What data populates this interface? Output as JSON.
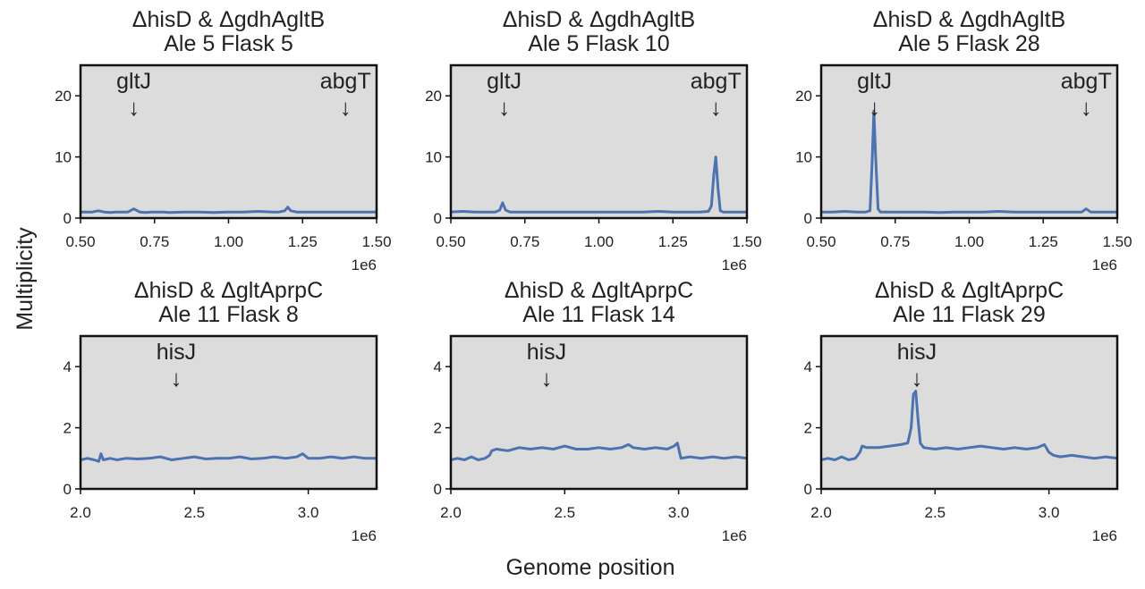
{
  "figure": {
    "xlabel": "Genome position",
    "ylabel": "Multiplicity"
  },
  "chart_data": [
    {
      "type": "line",
      "title": [
        "ΔhisD & ΔgdhAgltB",
        "Ale 5 Flask 5"
      ],
      "xlim": [
        500000,
        1500000
      ],
      "ylim": [
        0,
        25
      ],
      "xticks": [
        500000,
        750000,
        1000000,
        1250000,
        1500000
      ],
      "xtick_labels": [
        "0.50",
        "0.75",
        "1.00",
        "1.25",
        "1.50"
      ],
      "yticks": [
        0,
        10,
        20
      ],
      "ytick_labels": [
        "0",
        "10",
        "20"
      ],
      "x_offset_label": "1e6",
      "series": [
        {
          "color": "#4C72B0",
          "x": [
            500000,
            520000,
            540000,
            560000,
            580000,
            600000,
            620000,
            640000,
            660000,
            680000,
            700000,
            720000,
            740000,
            760000,
            780000,
            800000,
            850000,
            900000,
            950000,
            1000000,
            1050000,
            1100000,
            1150000,
            1170000,
            1190000,
            1200000,
            1210000,
            1230000,
            1250000,
            1300000,
            1350000,
            1400000,
            1450000,
            1500000
          ],
          "y": [
            1.0,
            1.0,
            1.0,
            1.2,
            1.0,
            0.9,
            1.0,
            1.0,
            1.0,
            1.5,
            1.0,
            0.9,
            1.0,
            1.0,
            1.0,
            0.9,
            1.0,
            1.0,
            0.9,
            1.0,
            1.0,
            1.1,
            1.0,
            1.0,
            1.2,
            1.8,
            1.2,
            1.0,
            1.0,
            1.0,
            1.0,
            1.0,
            1.0,
            1.0
          ]
        }
      ],
      "annotations": [
        {
          "text": "gltJ",
          "x": 680000
        },
        {
          "text": "abgT",
          "x": 1395000
        }
      ]
    },
    {
      "type": "line",
      "title": [
        "ΔhisD & ΔgdhAgltB",
        "Ale 5 Flask 10"
      ],
      "xlim": [
        500000,
        1500000
      ],
      "ylim": [
        0,
        25
      ],
      "xticks": [
        500000,
        750000,
        1000000,
        1250000,
        1500000
      ],
      "xtick_labels": [
        "0.50",
        "0.75",
        "1.00",
        "1.25",
        "1.50"
      ],
      "yticks": [
        0,
        10,
        20
      ],
      "ytick_labels": [
        "0",
        "10",
        "20"
      ],
      "x_offset_label": "1e6",
      "series": [
        {
          "color": "#4C72B0",
          "x": [
            500000,
            540000,
            580000,
            620000,
            650000,
            665000,
            675000,
            685000,
            700000,
            740000,
            800000,
            850000,
            900000,
            950000,
            1000000,
            1050000,
            1100000,
            1150000,
            1200000,
            1250000,
            1300000,
            1340000,
            1370000,
            1380000,
            1388000,
            1395000,
            1402000,
            1410000,
            1420000,
            1450000,
            1500000
          ],
          "y": [
            1.0,
            1.1,
            1.0,
            1.0,
            1.0,
            1.3,
            2.5,
            1.3,
            1.0,
            1.0,
            1.0,
            1.0,
            1.0,
            1.0,
            1.0,
            1.0,
            1.0,
            1.0,
            1.1,
            1.0,
            1.0,
            1.0,
            1.1,
            2.0,
            7.0,
            10.0,
            5.0,
            1.2,
            1.0,
            1.0,
            1.0
          ]
        }
      ],
      "annotations": [
        {
          "text": "gltJ",
          "x": 680000
        },
        {
          "text": "abgT",
          "x": 1395000
        }
      ]
    },
    {
      "type": "line",
      "title": [
        "ΔhisD & ΔgdhAgltB",
        "Ale 5 Flask 28"
      ],
      "xlim": [
        500000,
        1500000
      ],
      "ylim": [
        0,
        25
      ],
      "xticks": [
        500000,
        750000,
        1000000,
        1250000,
        1500000
      ],
      "xtick_labels": [
        "0.50",
        "0.75",
        "1.00",
        "1.25",
        "1.50"
      ],
      "yticks": [
        0,
        10,
        20
      ],
      "ytick_labels": [
        "0",
        "10",
        "20"
      ],
      "x_offset_label": "1e6",
      "series": [
        {
          "color": "#4C72B0",
          "x": [
            500000,
            540000,
            580000,
            620000,
            650000,
            665000,
            672000,
            678000,
            684000,
            692000,
            700000,
            740000,
            800000,
            850000,
            900000,
            950000,
            1000000,
            1050000,
            1100000,
            1150000,
            1200000,
            1250000,
            1300000,
            1350000,
            1380000,
            1395000,
            1410000,
            1450000,
            1500000
          ],
          "y": [
            1.0,
            1.0,
            1.1,
            1.0,
            1.0,
            1.2,
            9.0,
            17.5,
            10.0,
            1.5,
            1.0,
            1.0,
            1.0,
            1.0,
            0.9,
            1.0,
            1.0,
            1.0,
            1.1,
            1.0,
            1.0,
            1.0,
            1.0,
            1.0,
            1.0,
            1.5,
            1.0,
            1.0,
            1.0
          ]
        }
      ],
      "annotations": [
        {
          "text": "gltJ",
          "x": 680000
        },
        {
          "text": "abgT",
          "x": 1395000
        }
      ]
    },
    {
      "type": "line",
      "title": [
        "ΔhisD & ΔgltAprpC",
        "Ale 11 Flask 8"
      ],
      "xlim": [
        2000000,
        3300000
      ],
      "ylim": [
        0,
        5
      ],
      "xticks": [
        2000000,
        2500000,
        3000000
      ],
      "xtick_labels": [
        "2.0",
        "2.5",
        "3.0"
      ],
      "yticks": [
        0,
        2,
        4
      ],
      "ytick_labels": [
        "0",
        "2",
        "4"
      ],
      "x_offset_label": "1e6",
      "series": [
        {
          "color": "#4C72B0",
          "x": [
            2000000,
            2030000,
            2060000,
            2080000,
            2090000,
            2100000,
            2130000,
            2160000,
            2200000,
            2250000,
            2300000,
            2350000,
            2400000,
            2450000,
            2500000,
            2550000,
            2600000,
            2650000,
            2700000,
            2750000,
            2800000,
            2850000,
            2900000,
            2950000,
            2975000,
            3000000,
            3050000,
            3100000,
            3150000,
            3200000,
            3250000,
            3300000
          ],
          "y": [
            0.95,
            1.0,
            0.95,
            0.9,
            1.15,
            0.95,
            1.0,
            0.95,
            1.0,
            0.98,
            1.0,
            1.05,
            0.95,
            1.0,
            1.05,
            0.98,
            1.0,
            1.0,
            1.05,
            0.98,
            1.0,
            1.05,
            1.0,
            1.05,
            1.15,
            1.0,
            1.0,
            1.05,
            1.0,
            1.05,
            1.0,
            1.0
          ]
        }
      ],
      "annotations": [
        {
          "text": "hisJ",
          "x": 2420000
        }
      ]
    },
    {
      "type": "line",
      "title": [
        "ΔhisD & ΔgltAprpC",
        "Ale 11 Flask 14"
      ],
      "xlim": [
        2000000,
        3300000
      ],
      "ylim": [
        0,
        5
      ],
      "xticks": [
        2000000,
        2500000,
        3000000
      ],
      "xtick_labels": [
        "2.0",
        "2.5",
        "3.0"
      ],
      "yticks": [
        0,
        2,
        4
      ],
      "ytick_labels": [
        "0",
        "2",
        "4"
      ],
      "x_offset_label": "1e6",
      "series": [
        {
          "color": "#4C72B0",
          "x": [
            2000000,
            2030000,
            2060000,
            2090000,
            2120000,
            2150000,
            2170000,
            2180000,
            2200000,
            2250000,
            2300000,
            2350000,
            2400000,
            2450000,
            2500000,
            2550000,
            2600000,
            2650000,
            2700000,
            2750000,
            2780000,
            2800000,
            2850000,
            2900000,
            2950000,
            2980000,
            2995000,
            3010000,
            3050000,
            3100000,
            3150000,
            3200000,
            3250000,
            3300000
          ],
          "y": [
            0.95,
            1.0,
            0.95,
            1.05,
            0.95,
            1.0,
            1.1,
            1.25,
            1.3,
            1.25,
            1.35,
            1.3,
            1.35,
            1.3,
            1.4,
            1.3,
            1.3,
            1.35,
            1.3,
            1.35,
            1.45,
            1.35,
            1.3,
            1.35,
            1.3,
            1.4,
            1.5,
            1.0,
            1.05,
            1.0,
            1.05,
            1.0,
            1.05,
            1.0
          ]
        }
      ],
      "annotations": [
        {
          "text": "hisJ",
          "x": 2420000
        }
      ]
    },
    {
      "type": "line",
      "title": [
        "ΔhisD & ΔgltAprpC",
        "Ale 11 Flask 29"
      ],
      "xlim": [
        2000000,
        3300000
      ],
      "ylim": [
        0,
        5
      ],
      "xticks": [
        2000000,
        2500000,
        3000000
      ],
      "xtick_labels": [
        "2.0",
        "2.5",
        "3.0"
      ],
      "yticks": [
        0,
        2,
        4
      ],
      "ytick_labels": [
        "0",
        "2",
        "4"
      ],
      "x_offset_label": "1e6",
      "series": [
        {
          "color": "#4C72B0",
          "x": [
            2000000,
            2030000,
            2060000,
            2090000,
            2120000,
            2150000,
            2170000,
            2180000,
            2200000,
            2250000,
            2300000,
            2350000,
            2380000,
            2395000,
            2405000,
            2415000,
            2425000,
            2435000,
            2450000,
            2500000,
            2550000,
            2600000,
            2650000,
            2700000,
            2750000,
            2800000,
            2850000,
            2900000,
            2950000,
            2980000,
            3000000,
            3020000,
            3050000,
            3100000,
            3150000,
            3200000,
            3250000,
            3300000
          ],
          "y": [
            0.95,
            1.0,
            0.95,
            1.05,
            0.95,
            1.0,
            1.2,
            1.4,
            1.35,
            1.35,
            1.4,
            1.45,
            1.5,
            2.0,
            3.1,
            3.2,
            2.3,
            1.5,
            1.35,
            1.3,
            1.35,
            1.3,
            1.35,
            1.4,
            1.35,
            1.3,
            1.35,
            1.3,
            1.35,
            1.45,
            1.2,
            1.1,
            1.05,
            1.1,
            1.05,
            1.0,
            1.05,
            1.0
          ]
        }
      ],
      "annotations": [
        {
          "text": "hisJ",
          "x": 2420000
        }
      ]
    }
  ]
}
